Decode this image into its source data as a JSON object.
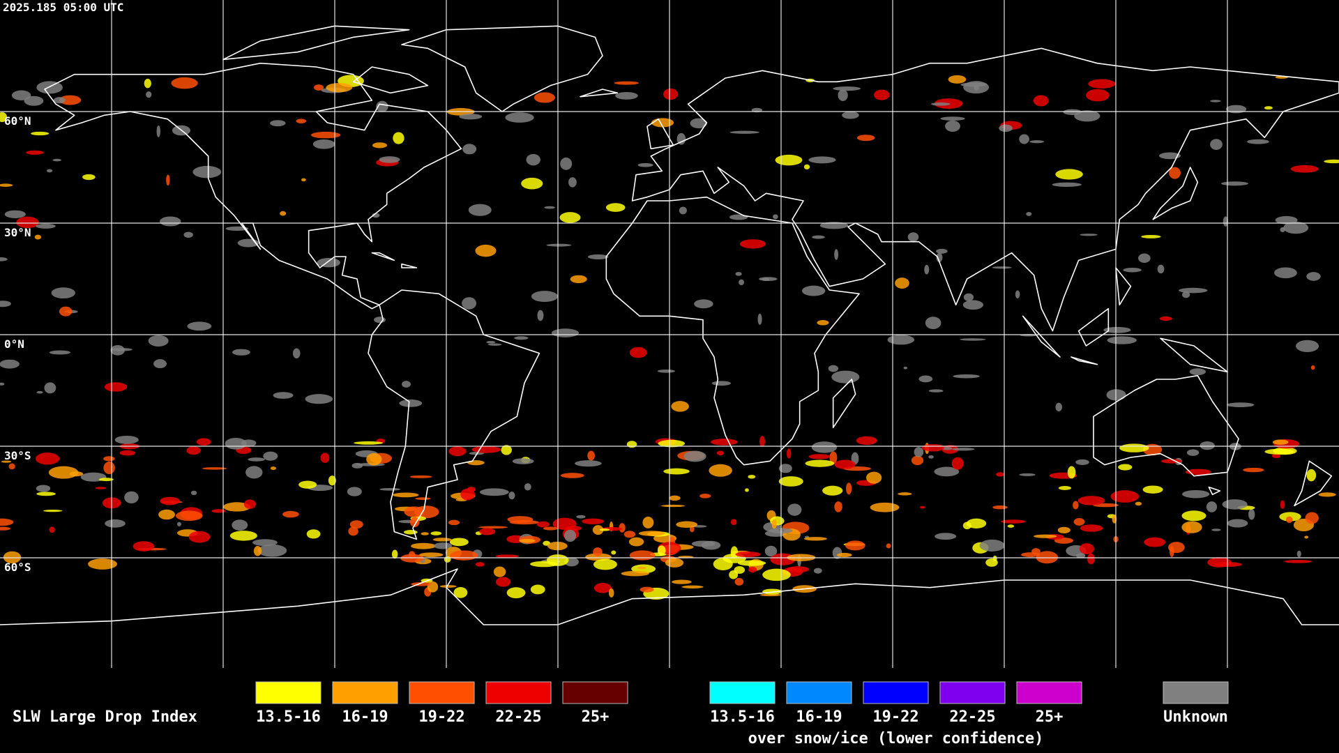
{
  "header": {
    "timestamp": "2025.185 05:00 UTC"
  },
  "lat_labels": [
    "60°N",
    "30°N",
    "0°N",
    "30°S",
    "60°S"
  ],
  "legend": {
    "title": "SLW Large Drop Index",
    "groups": [
      {
        "items": [
          {
            "label": "13.5-16",
            "color": "#ffff00"
          },
          {
            "label": "16-19",
            "color": "#ff9f00"
          },
          {
            "label": "19-22",
            "color": "#ff5000"
          },
          {
            "label": "22-25",
            "color": "#ee0000"
          },
          {
            "label": "25+",
            "color": "#660000"
          }
        ]
      },
      {
        "items": [
          {
            "label": "13.5-16",
            "color": "#00ffff"
          },
          {
            "label": "16-19",
            "color": "#0088ff"
          },
          {
            "label": "19-22",
            "color": "#0000ff"
          },
          {
            "label": "22-25",
            "color": "#7f00ee"
          },
          {
            "label": "25+",
            "color": "#cc00cc"
          }
        ],
        "caption": "over snow/ice (lower confidence)"
      },
      {
        "items": [
          {
            "label": "Unknown",
            "color": "#808080"
          }
        ]
      }
    ]
  }
}
